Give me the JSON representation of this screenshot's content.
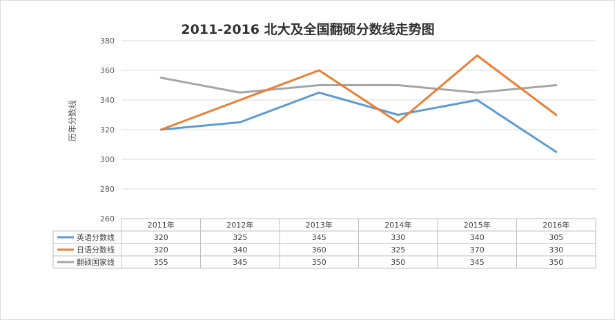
{
  "chart_data": {
    "type": "line",
    "title": "2011-2016 北大及全国翻硕分数线走势图",
    "ylabel": "历年分数线",
    "xlabel": "",
    "ylim": [
      260,
      380
    ],
    "yticks": [
      "260",
      "280",
      "300",
      "320",
      "340",
      "360",
      "380"
    ],
    "categories": [
      "2011年",
      "2012年",
      "2013年",
      "2014年",
      "2015年",
      "2016年"
    ],
    "grid": true,
    "legend": "data-table-left",
    "series": [
      {
        "name": "英语分数线",
        "color": "#5b9bd5",
        "values": [
          320,
          325,
          345,
          330,
          340,
          305
        ]
      },
      {
        "name": "日语分数线",
        "color": "#ed7d31",
        "values": [
          320,
          340,
          360,
          325,
          370,
          330
        ]
      },
      {
        "name": "翻硕国家线",
        "color": "#a5a5a5",
        "values": [
          355,
          345,
          350,
          350,
          345,
          350
        ]
      }
    ]
  }
}
